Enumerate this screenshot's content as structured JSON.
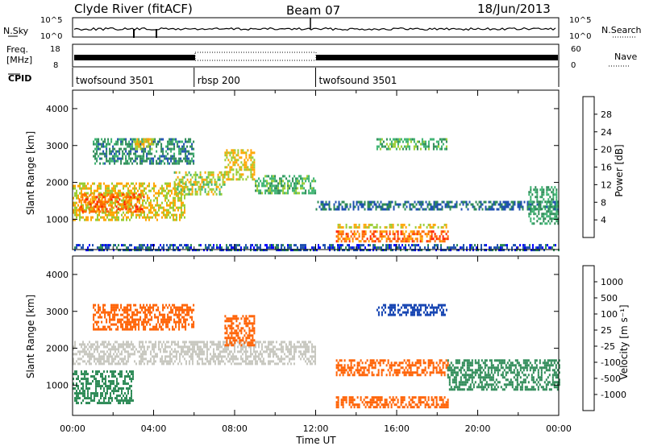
{
  "header": {
    "station": "Clyde River (fitACF)",
    "beam": "Beam 07",
    "date": "18/Jun/2013"
  },
  "strip_labels": {
    "nsky": "N.Sky",
    "nsearch": "N.Search",
    "freq_line1": "Freq.",
    "freq_line2": "[MHz]",
    "nave": "Nave",
    "cpid": "CPID",
    "nsky_ticks": [
      "10^5",
      "10^0"
    ],
    "nsearch_ticks": [
      "10^5",
      "10^0"
    ],
    "freq_ticks": [
      "18",
      "8"
    ],
    "nave_ticks": [
      "60",
      "0"
    ]
  },
  "cpid_segments": [
    {
      "label": "twofsound 3501",
      "start_h": 0,
      "end_h": 6
    },
    {
      "label": "rbsp 200",
      "start_h": 6,
      "end_h": 12
    },
    {
      "label": "twofsound 3501",
      "start_h": 12,
      "end_h": 24
    }
  ],
  "colors": {
    "power": [
      "#0000ff",
      "#1f50b0",
      "#2e8b57",
      "#3cb371",
      "#9acd32",
      "#ffa500",
      "#ff6a00",
      "#ff2200",
      "#ff0000"
    ],
    "velocity": [
      "#1040b0",
      "#2e8b57",
      "#4aa84a",
      "#66cc33",
      "#c8c8c0",
      "#c8c8c0",
      "#ff8c00",
      "#ff6000",
      "#ff3000",
      "#ff0000"
    ]
  },
  "chart_data": [
    {
      "type": "heatmap",
      "name": "power",
      "xlabel": "",
      "ylabel": "Slant Range [km]",
      "xlim": [
        0,
        24
      ],
      "ylim": [
        180,
        4500
      ],
      "yticks": [
        1000,
        2000,
        3000,
        4000
      ],
      "colorbar": {
        "label": "Power [dB]",
        "range": [
          0,
          32
        ],
        "ticks": [
          "4",
          "8",
          "12",
          "16",
          "20",
          "24",
          "28"
        ]
      },
      "regions": [
        {
          "t0": 0.0,
          "t1": 5.5,
          "r0": 1000,
          "r1": 2000,
          "value": 20
        },
        {
          "t0": 0.3,
          "t1": 3.5,
          "r0": 1200,
          "r1": 1700,
          "value": 26
        },
        {
          "t0": 1.0,
          "t1": 6.0,
          "r0": 2500,
          "r1": 3200,
          "value": 10
        },
        {
          "t0": 3.0,
          "t1": 4.0,
          "r0": 2900,
          "r1": 3200,
          "value": 20
        },
        {
          "t0": 5.0,
          "t1": 7.5,
          "r0": 1700,
          "r1": 2300,
          "value": 18
        },
        {
          "t0": 7.5,
          "t1": 9.0,
          "r0": 2100,
          "r1": 2900,
          "value": 20
        },
        {
          "t0": 9.0,
          "t1": 12.0,
          "r0": 1700,
          "r1": 2200,
          "value": 14
        },
        {
          "t0": 12.0,
          "t1": 24.0,
          "r0": 1300,
          "r1": 1500,
          "value": 8
        },
        {
          "t0": 13.0,
          "t1": 18.5,
          "r0": 400,
          "r1": 700,
          "value": 26
        },
        {
          "t0": 13.0,
          "t1": 18.5,
          "r0": 780,
          "r1": 880,
          "value": 20
        },
        {
          "t0": 15.0,
          "t1": 18.5,
          "r0": 2900,
          "r1": 3200,
          "value": 14
        },
        {
          "t0": 0.0,
          "t1": 24.0,
          "r0": 180,
          "r1": 330,
          "value": 6
        },
        {
          "t0": 22.5,
          "t1": 24.0,
          "r0": 900,
          "r1": 1900,
          "value": 12
        }
      ]
    },
    {
      "type": "heatmap",
      "name": "velocity",
      "xlabel": "Time UT",
      "ylabel": "Slant Range [km]",
      "xlim": [
        0,
        24
      ],
      "ylim": [
        180,
        4500
      ],
      "yticks": [
        1000,
        2000,
        3000,
        4000
      ],
      "xticks": [
        "00:00",
        "04:00",
        "08:00",
        "12:00",
        "16:00",
        "20:00",
        "00:00"
      ],
      "colorbar": {
        "label": "Velocity [m s⁻¹]",
        "ticks": [
          "1000",
          "500",
          "100",
          "25",
          "-25",
          "-100",
          "-500",
          "-1000"
        ]
      },
      "regions": [
        {
          "t0": 0.0,
          "t1": 12.0,
          "r0": 1600,
          "r1": 2200,
          "value": 0
        },
        {
          "t0": 0.0,
          "t1": 3.0,
          "r0": 500,
          "r1": 1400,
          "value": 200
        },
        {
          "t0": 1.0,
          "t1": 6.0,
          "r0": 2500,
          "r1": 3200,
          "value": -200
        },
        {
          "t0": 7.5,
          "t1": 9.0,
          "r0": 2100,
          "r1": 2900,
          "value": -150
        },
        {
          "t0": 13.0,
          "t1": 18.5,
          "r0": 400,
          "r1": 700,
          "value": -300
        },
        {
          "t0": 13.0,
          "t1": 18.5,
          "r0": 1300,
          "r1": 1700,
          "value": -200
        },
        {
          "t0": 15.0,
          "t1": 18.5,
          "r0": 2900,
          "r1": 3200,
          "value": 700
        },
        {
          "t0": 18.5,
          "t1": 24.0,
          "r0": 900,
          "r1": 1700,
          "value": 150
        }
      ]
    }
  ]
}
